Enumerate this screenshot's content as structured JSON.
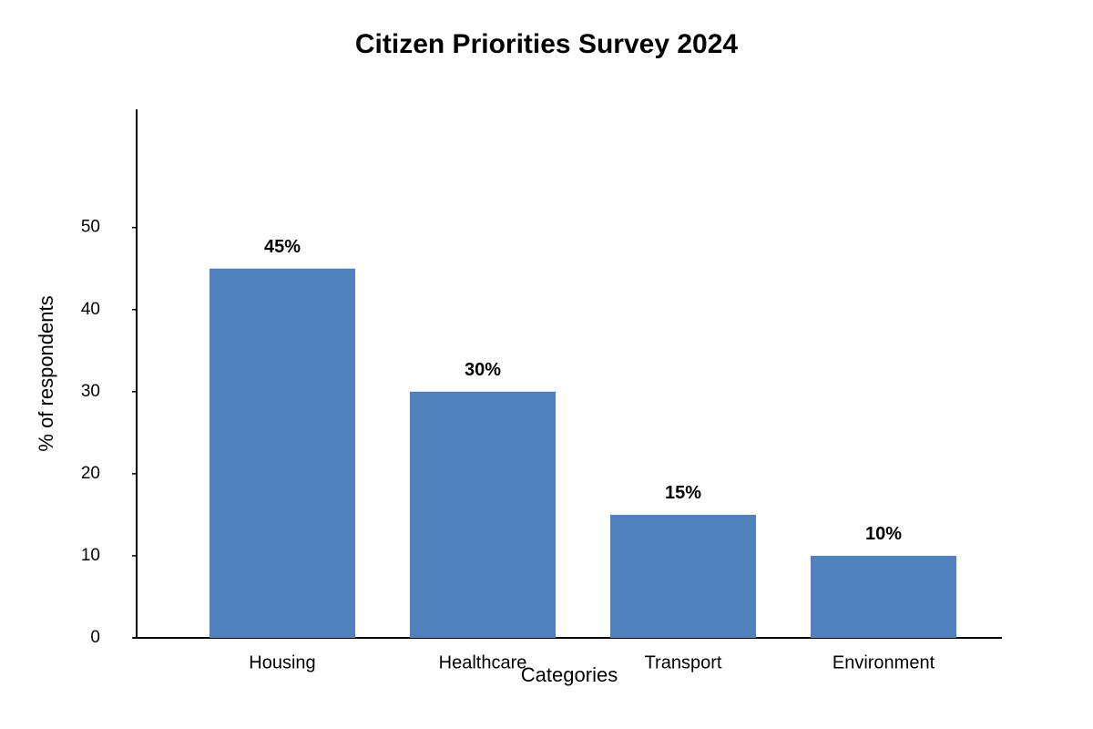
{
  "chart_data": {
    "type": "bar",
    "title": "Citizen Priorities Survey 2024",
    "x_label": "Categories",
    "y_label": "% of respondents",
    "categories": [
      "Housing",
      "Healthcare",
      "Transport",
      "Environment"
    ],
    "values": [
      45,
      30,
      15,
      10
    ],
    "value_labels": [
      "45%",
      "30%",
      "15%",
      "10%"
    ],
    "color": "#4f81bd",
    "ylim": [
      0,
      64.4
    ],
    "yticks": [
      0,
      10,
      20,
      30,
      40,
      50
    ],
    "grid": false
  }
}
